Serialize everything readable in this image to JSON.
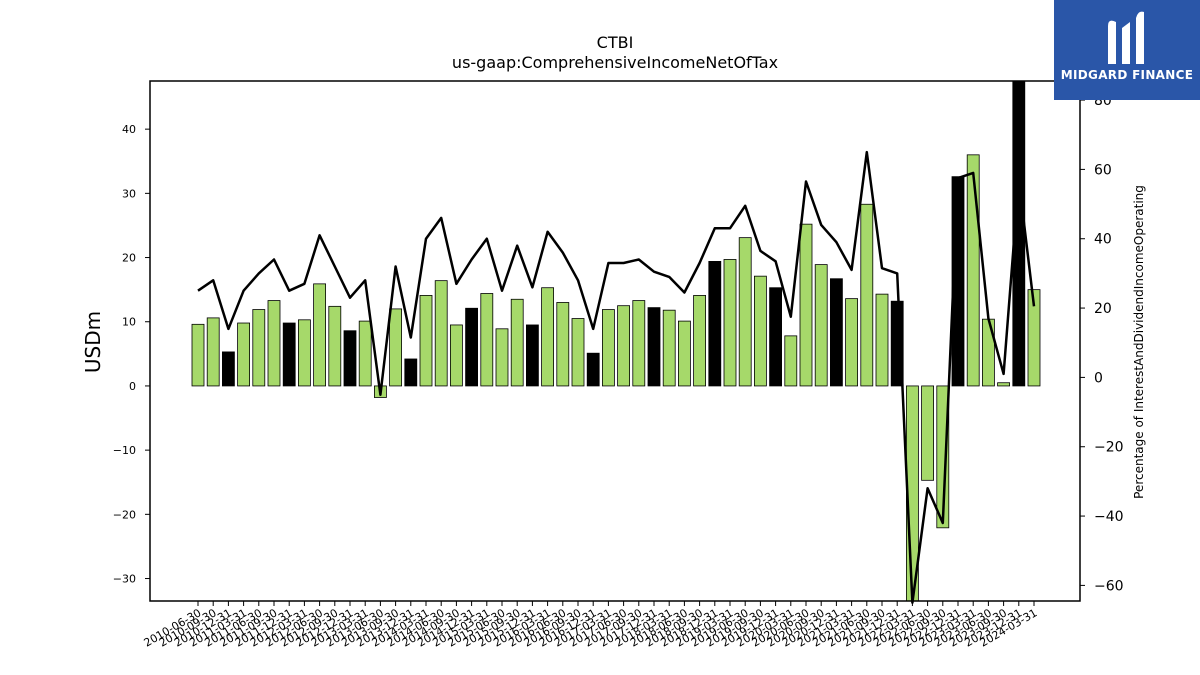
{
  "brand": {
    "name": "MIDGARD FINANCE",
    "color": "#2a56a8"
  },
  "chart_data": {
    "type": "bar",
    "title": "CTBI",
    "subtitle": "us-gaap:ComprehensiveIncomeNetOfTax",
    "ylabel": "USDm",
    "y2label": "Percentage of InterestAndDividendIncomeOperating",
    "ylim": [
      -33.5,
      47.5
    ],
    "y2lim": [
      -64.5,
      85.5
    ],
    "yticks": [
      -30,
      -20,
      -10,
      0,
      10,
      20,
      30,
      40
    ],
    "y2ticks": [
      -60,
      -40,
      -20,
      0,
      20,
      40,
      60,
      80
    ],
    "legend": "none",
    "grid": false,
    "colors": {
      "positive_change": "#a6d96a",
      "negative_change": "#000000",
      "line": "#000000"
    },
    "categories": [
      "2010-06-30",
      "2010-09-30",
      "2010-12-31",
      "2011-03-31",
      "2011-06-30",
      "2011-09-30",
      "2011-12-31",
      "2012-03-31",
      "2012-06-30",
      "2012-09-30",
      "2012-12-31",
      "2013-03-31",
      "2013-06-30",
      "2013-09-30",
      "2013-12-31",
      "2014-03-31",
      "2014-06-30",
      "2014-09-30",
      "2014-12-31",
      "2015-03-31",
      "2015-06-30",
      "2015-09-30",
      "2015-12-31",
      "2016-03-31",
      "2016-06-30",
      "2016-09-30",
      "2016-12-31",
      "2017-03-31",
      "2017-06-30",
      "2017-09-30",
      "2017-12-31",
      "2018-03-31",
      "2018-06-30",
      "2018-09-30",
      "2018-12-31",
      "2019-03-31",
      "2019-06-30",
      "2019-09-30",
      "2019-12-31",
      "2020-03-31",
      "2020-06-30",
      "2020-09-30",
      "2020-12-31",
      "2021-03-31",
      "2021-06-30",
      "2021-09-30",
      "2021-12-31",
      "2022-03-31",
      "2022-06-30",
      "2022-09-30",
      "2022-12-31",
      "2023-03-31",
      "2023-06-30",
      "2023-09-30",
      "2023-12-31",
      "2024-03-31"
    ],
    "series": [
      {
        "kind": "bar",
        "axis": "left",
        "values": [
          9.6,
          10.6,
          5.3,
          9.8,
          11.9,
          13.3,
          9.8,
          10.3,
          15.9,
          12.4,
          8.6,
          10.1,
          -1.8,
          12.0,
          4.2,
          14.1,
          16.4,
          9.5,
          12.1,
          14.4,
          8.9,
          13.5,
          9.5,
          15.3,
          13.0,
          10.5,
          5.1,
          11.9,
          12.5,
          13.3,
          12.2,
          11.8,
          10.1,
          14.1,
          19.4,
          19.7,
          23.1,
          17.1,
          15.3,
          7.8,
          25.2,
          18.9,
          16.7,
          13.6,
          28.3,
          14.3,
          13.2,
          -33.5,
          -14.7,
          -22.1,
          32.6,
          36.0,
          10.4,
          0.5,
          47.5,
          15.0
        ],
        "colors": [
          "g",
          "g",
          "k",
          "g",
          "g",
          "g",
          "k",
          "g",
          "g",
          "g",
          "k",
          "g",
          "g",
          "g",
          "k",
          "g",
          "g",
          "g",
          "k",
          "g",
          "g",
          "g",
          "k",
          "g",
          "g",
          "g",
          "k",
          "g",
          "g",
          "g",
          "k",
          "g",
          "g",
          "g",
          "k",
          "g",
          "g",
          "g",
          "k",
          "g",
          "g",
          "g",
          "k",
          "g",
          "g",
          "g",
          "k",
          "g",
          "g",
          "g",
          "k",
          "g",
          "g",
          "g",
          "k",
          "g"
        ]
      },
      {
        "kind": "line",
        "axis": "right",
        "values": [
          25.0,
          28.0,
          14.0,
          25.0,
          30.0,
          34.0,
          25.0,
          27.0,
          41.0,
          32.0,
          23.0,
          28.0,
          -5.0,
          32.0,
          11.5,
          40.0,
          46.0,
          27.0,
          34.0,
          40.0,
          25.0,
          38.0,
          26.0,
          42.0,
          36.0,
          28.0,
          14.0,
          33.0,
          33.0,
          34.0,
          30.5,
          29.0,
          24.5,
          33.0,
          43.0,
          43.0,
          49.5,
          36.5,
          33.5,
          17.5,
          56.5,
          44.0,
          39.0,
          31.0,
          65.0,
          31.5,
          30.0,
          -65.0,
          -32.0,
          -42.0,
          57.5,
          59.0,
          17.0,
          1.0,
          57.0,
          20.5
        ]
      }
    ]
  }
}
